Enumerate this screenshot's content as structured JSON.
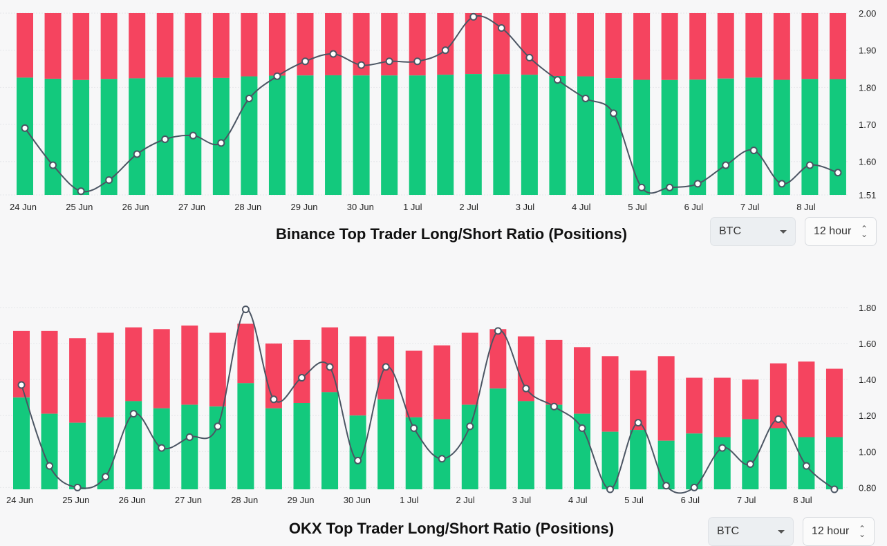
{
  "charts": [
    {
      "title": "Binance Top Trader Long/Short Ratio (Positions)",
      "coin_select": "BTC",
      "interval_select": "12 hour"
    },
    {
      "title": "OKX Top Trader Long/Short Ratio (Positions)",
      "coin_select": "BTC",
      "interval_select": "12 hour"
    }
  ],
  "colors": {
    "long": "#13c97d",
    "short": "#f5445f",
    "line": "#4b5563",
    "marker_fill": "#ffffff",
    "grid": "#e6e7ea"
  },
  "icons": {
    "dropdown": "chevron-down-icon",
    "stepper": "up-down-arrows-icon"
  },
  "chart_data": [
    {
      "type": "bar+line",
      "title": "Binance Top Trader Long/Short Ratio (Positions)",
      "x_tick_labels": [
        "24 Jun",
        "25 Jun",
        "26 Jun",
        "27 Jun",
        "28 Jun",
        "29 Jun",
        "30 Jun",
        "1 Jul",
        "2 Jul",
        "3 Jul",
        "4 Jul",
        "5 Jul",
        "6 Jul",
        "7 Jul",
        "8 Jul"
      ],
      "y_ticks": [
        "2.00",
        "1.90",
        "1.80",
        "1.70",
        "1.60",
        "1.51"
      ],
      "ylim": [
        1.51,
        2.0
      ],
      "long_account_pct": [
        64.5,
        63.9,
        63.2,
        63.8,
        64.1,
        64.6,
        64.6,
        64.3,
        65.2,
        65.6,
        65.7,
        65.8,
        65.7,
        65.7,
        65.7,
        66.1,
        66.5,
        66.4,
        66.1,
        65.4,
        65.2,
        64.2,
        63.3,
        63.2,
        63.4,
        64.0,
        64.5,
        63.3,
        63.8,
        63.7
      ],
      "long_short_ratio": [
        1.69,
        1.59,
        1.52,
        1.55,
        1.62,
        1.66,
        1.67,
        1.65,
        1.77,
        1.83,
        1.87,
        1.89,
        1.86,
        1.87,
        1.87,
        1.9,
        1.99,
        1.96,
        1.88,
        1.82,
        1.77,
        1.73,
        1.53,
        1.53,
        1.54,
        1.59,
        1.63,
        1.54,
        1.59,
        1.57
      ]
    },
    {
      "type": "bar+line",
      "title": "OKX Top Trader Long/Short Ratio (Positions)",
      "x_tick_labels": [
        "24 Jun",
        "25 Jun",
        "26 Jun",
        "27 Jun",
        "28 Jun",
        "29 Jun",
        "30 Jun",
        "1 Jul",
        "2 Jul",
        "3 Jul",
        "4 Jul",
        "5 Jul",
        "6 Jul",
        "7 Jul",
        "8 Jul"
      ],
      "y_ticks": [
        "1.80",
        "1.60",
        "1.40",
        "1.20",
        "1.00",
        "0.80"
      ],
      "ylim": [
        0.79,
        1.8
      ],
      "long_bar_top": [
        1.3,
        1.21,
        1.16,
        1.19,
        1.28,
        1.24,
        1.26,
        1.25,
        1.38,
        1.24,
        1.27,
        1.33,
        1.2,
        1.29,
        1.19,
        1.18,
        1.26,
        1.35,
        1.28,
        1.26,
        1.21,
        1.11,
        1.12,
        1.06,
        1.1,
        1.08,
        1.18,
        1.13,
        1.08,
        1.08
      ],
      "total_bar_top": [
        1.67,
        1.67,
        1.63,
        1.66,
        1.69,
        1.68,
        1.7,
        1.66,
        1.71,
        1.6,
        1.62,
        1.69,
        1.64,
        1.64,
        1.56,
        1.59,
        1.66,
        1.68,
        1.64,
        1.62,
        1.58,
        1.53,
        1.45,
        1.53,
        1.41,
        1.41,
        1.4,
        1.49,
        1.5,
        1.46
      ],
      "long_short_ratio": [
        1.37,
        0.92,
        0.8,
        0.86,
        1.21,
        1.02,
        1.08,
        1.14,
        1.79,
        1.29,
        1.41,
        1.47,
        0.95,
        1.47,
        1.13,
        0.96,
        1.14,
        1.67,
        1.35,
        1.25,
        1.13,
        0.79,
        1.16,
        0.81,
        0.8,
        1.02,
        0.93,
        1.18,
        0.92,
        0.79
      ]
    }
  ]
}
